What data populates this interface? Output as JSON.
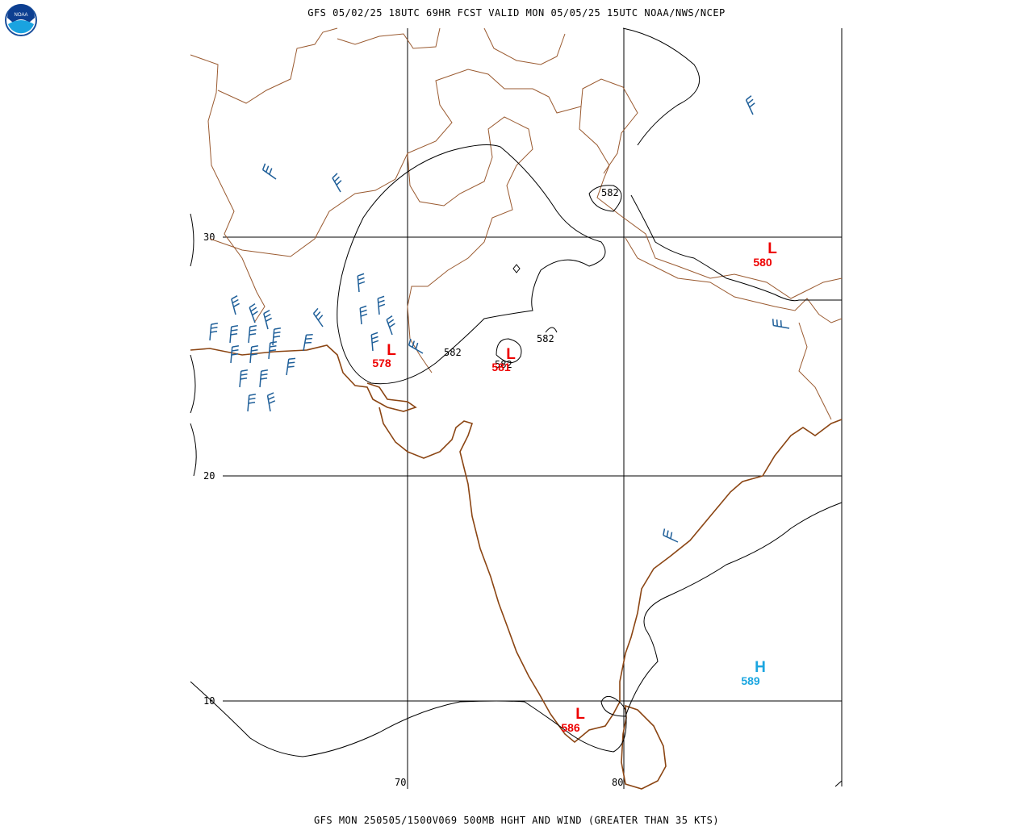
{
  "header": {
    "title": "GFS 05/02/25 18UTC 69HR FCST VALID MON 05/05/25 15UTC NOAA/NWS/NCEP",
    "logo_text": "NOAA"
  },
  "footer": {
    "title": "GFS MON 250505/1500V069 500MB HGHT AND WIND (GREATER THAN 35 KTS)"
  },
  "grid": {
    "latitudes": [
      "30",
      "20",
      "10"
    ],
    "longitudes": [
      "70",
      "80"
    ]
  },
  "contour_labels": [
    "582",
    "582",
    "582",
    "582"
  ],
  "pressure_systems": [
    {
      "type": "L",
      "value": "578"
    },
    {
      "type": "L",
      "value": "581"
    },
    {
      "type": "L",
      "value": "580"
    },
    {
      "type": "L",
      "value": "586"
    },
    {
      "type": "H",
      "value": "589"
    }
  ],
  "colors": {
    "low": "#ee0000",
    "high": "#1ba6e0",
    "coast": "#8b4513",
    "border": "#9a5a30",
    "barb": "#1f5f99",
    "grid": "#000000"
  }
}
